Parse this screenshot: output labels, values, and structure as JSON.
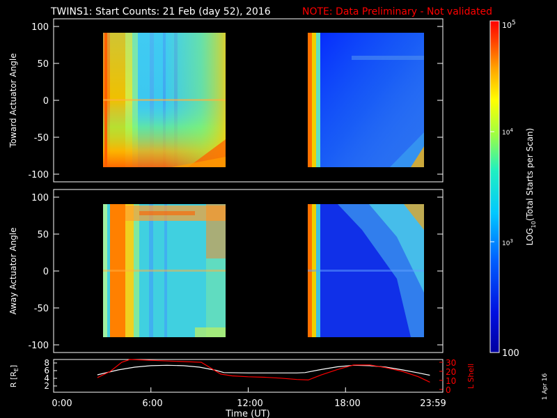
{
  "header": {
    "title": "TWINS1: Start Counts: 21 Feb (day  52), 2016",
    "note": "NOTE: Data Preliminary - Not validated"
  },
  "colors": {
    "background": "#000000",
    "note": "#ff0000",
    "axis": "#ffffff",
    "lshell": "#ff0000",
    "radius": "#ffffff"
  },
  "side_stamp": "1 Apr 16",
  "chart_data": [
    {
      "type": "heatmap",
      "panel": "toward",
      "ylabel": "Toward Actuator Angle",
      "ylim": [
        -105,
        105
      ],
      "yticks": [
        "100",
        "50",
        "0",
        "-50",
        "-100"
      ],
      "xlim": [
        0,
        24
      ],
      "x_ranges_hours": [
        [
          2.6,
          10.5
        ],
        [
          15.5,
          23.2
        ]
      ],
      "y_range": [
        -90,
        90
      ]
    },
    {
      "type": "heatmap",
      "panel": "away",
      "ylabel": "Away Actuator Angle",
      "ylim": [
        -105,
        105
      ],
      "yticks": [
        "100",
        "50",
        "0",
        "-50",
        "-100"
      ],
      "xlim": [
        0,
        24
      ],
      "x_ranges_hours": [
        [
          2.6,
          10.5
        ],
        [
          15.5,
          23.2
        ]
      ],
      "y_range": [
        -90,
        90
      ]
    },
    {
      "type": "line",
      "panel": "orbit",
      "xlabel": "Time (UT)",
      "xticks": [
        "0:00",
        "6:00",
        "12:00",
        "18:00",
        "23:59"
      ],
      "left_ylabel": "R [R",
      "left_ylabel_sub": "E",
      "left_ylabel_end": "]",
      "left_yticks": [
        "8",
        "6",
        "4",
        "2"
      ],
      "right_ylabel": "L Shell",
      "right_yticks": [
        "30",
        "20",
        "10",
        "0"
      ],
      "series": [
        {
          "name": "R",
          "axis": "left",
          "x": [
            2.7,
            4,
            5,
            6,
            7,
            8,
            9,
            10,
            10.5,
            12,
            13,
            14,
            15,
            15.5,
            16.5,
            17.5,
            18.5,
            19.5,
            20.5,
            21.5,
            22.5,
            23.2
          ],
          "y": [
            4.9,
            6.2,
            6.9,
            7.3,
            7.4,
            7.3,
            6.9,
            6.1,
            5.5,
            5.4,
            5.4,
            5.4,
            5.4,
            5.5,
            6.3,
            7.0,
            7.4,
            7.3,
            6.9,
            6.2,
            5.4,
            4.8
          ]
        },
        {
          "name": "L Shell",
          "axis": "right",
          "x": [
            2.7,
            3.5,
            4.2,
            4.7,
            9.1,
            10.3,
            11,
            12,
            13,
            14,
            15,
            15.7,
            16.5,
            17.5,
            18.5,
            19.5,
            20.5,
            21.5,
            22.5,
            23.2
          ],
          "y": [
            13,
            20,
            30,
            36,
            30,
            17,
            15,
            14,
            13.5,
            12.5,
            11,
            10.5,
            16,
            22,
            27,
            27,
            24,
            20,
            14,
            8
          ]
        }
      ]
    },
    {
      "type": "heatmap",
      "panel": "colorbar",
      "label_pre": "LOG",
      "label_sub": "10",
      "label_post": "(Total Starts per Scan)",
      "ticks": [
        {
          "base": "10",
          "exp": "5",
          "value": 100000
        },
        {
          "base": "10",
          "exp": "4",
          "value": 10000
        },
        {
          "base": "10",
          "exp": "3",
          "value": 1000
        },
        {
          "base": "100",
          "exp": "",
          "value": 100
        }
      ],
      "zlim": [
        100,
        100000
      ]
    }
  ]
}
